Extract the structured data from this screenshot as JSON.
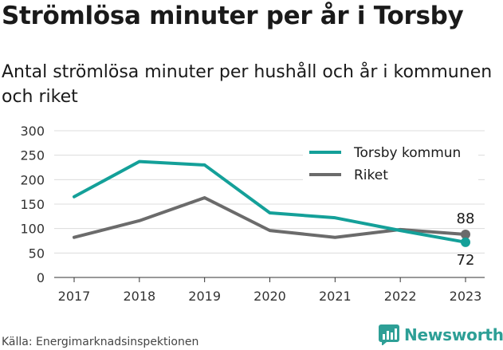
{
  "title": "Strömlösa minuter per år i Torsby",
  "subtitle": "Antal strömlösa minuter per hushåll och år i kommunen och riket",
  "source": "Källa: Energimarknadsinspektionen",
  "brand": "Newsworthy",
  "chart_data": {
    "type": "line",
    "x": [
      "2017",
      "2018",
      "2019",
      "2020",
      "2021",
      "2022",
      "2023"
    ],
    "ylim": [
      0,
      300
    ],
    "yticks": [
      "0",
      "50",
      "100",
      "150",
      "200",
      "250",
      "300"
    ],
    "grid": true,
    "legend_position": "top-right",
    "series": [
      {
        "name": "Torsby kommun",
        "color": "#14a099",
        "values": [
          165,
          237,
          230,
          132,
          122,
          96,
          72
        ]
      },
      {
        "name": "Riket",
        "color": "#6b6b6b",
        "values": [
          82,
          116,
          163,
          96,
          82,
          98,
          88
        ]
      }
    ],
    "end_labels": {
      "torsby": "72",
      "riket": "88"
    }
  }
}
